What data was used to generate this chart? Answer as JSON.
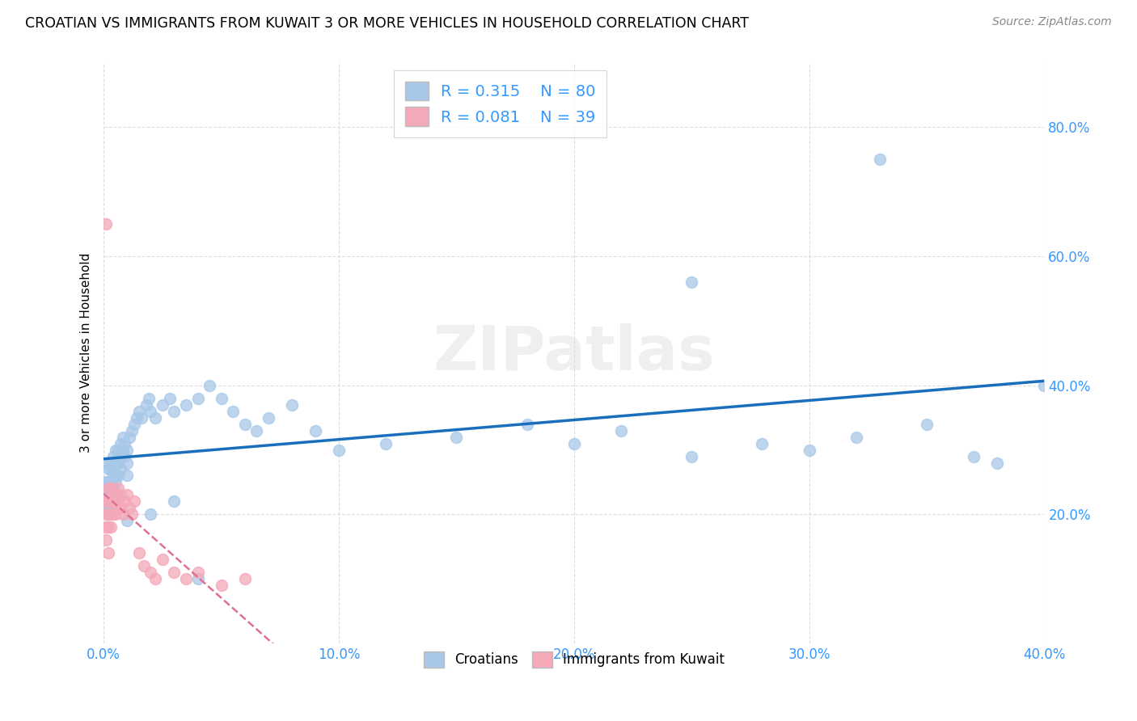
{
  "title": "CROATIAN VS IMMIGRANTS FROM KUWAIT 3 OR MORE VEHICLES IN HOUSEHOLD CORRELATION CHART",
  "source": "Source: ZipAtlas.com",
  "xlabel_range": [
    0.0,
    0.4
  ],
  "ylabel_range": [
    0.0,
    0.9
  ],
  "x_tick_vals": [
    0.0,
    0.1,
    0.2,
    0.3,
    0.4
  ],
  "y_tick_vals": [
    0.2,
    0.4,
    0.6,
    0.8
  ],
  "R_croatian": 0.315,
  "N_croatian": 80,
  "R_kuwait": 0.081,
  "N_kuwait": 39,
  "color_croatian": "#a8c8e8",
  "color_kuwait": "#f4a8b8",
  "trendline_croatian_color": "#1a6fbd",
  "trendline_kuwait_color": "#e07090",
  "watermark": "ZIPatlas",
  "tick_color": "#3399ff",
  "ylabel": "3 or more Vehicles in Household",
  "croatian_x": [
    0.001,
    0.001,
    0.001,
    0.002,
    0.002,
    0.002,
    0.002,
    0.002,
    0.003,
    0.003,
    0.003,
    0.003,
    0.003,
    0.003,
    0.004,
    0.004,
    0.004,
    0.004,
    0.004,
    0.005,
    0.005,
    0.005,
    0.005,
    0.005,
    0.006,
    0.006,
    0.006,
    0.007,
    0.007,
    0.007,
    0.008,
    0.008,
    0.009,
    0.009,
    0.01,
    0.01,
    0.01,
    0.011,
    0.012,
    0.013,
    0.014,
    0.015,
    0.016,
    0.018,
    0.019,
    0.02,
    0.022,
    0.025,
    0.028,
    0.03,
    0.035,
    0.04,
    0.045,
    0.05,
    0.055,
    0.06,
    0.065,
    0.07,
    0.08,
    0.09,
    0.1,
    0.12,
    0.15,
    0.18,
    0.2,
    0.22,
    0.25,
    0.28,
    0.3,
    0.32,
    0.35,
    0.37,
    0.38,
    0.4,
    0.25,
    0.33,
    0.01,
    0.02,
    0.03,
    0.04
  ],
  "croatian_y": [
    0.28,
    0.25,
    0.22,
    0.27,
    0.25,
    0.24,
    0.23,
    0.21,
    0.28,
    0.27,
    0.25,
    0.24,
    0.22,
    0.21,
    0.29,
    0.27,
    0.26,
    0.24,
    0.22,
    0.3,
    0.28,
    0.26,
    0.25,
    0.23,
    0.3,
    0.28,
    0.26,
    0.31,
    0.29,
    0.27,
    0.32,
    0.3,
    0.31,
    0.29,
    0.3,
    0.28,
    0.26,
    0.32,
    0.33,
    0.34,
    0.35,
    0.36,
    0.35,
    0.37,
    0.38,
    0.36,
    0.35,
    0.37,
    0.38,
    0.36,
    0.37,
    0.38,
    0.4,
    0.38,
    0.36,
    0.34,
    0.33,
    0.35,
    0.37,
    0.33,
    0.3,
    0.31,
    0.32,
    0.34,
    0.31,
    0.33,
    0.29,
    0.31,
    0.3,
    0.32,
    0.34,
    0.29,
    0.28,
    0.4,
    0.56,
    0.75,
    0.19,
    0.2,
    0.22,
    0.1
  ],
  "kuwait_x": [
    0.001,
    0.001,
    0.001,
    0.001,
    0.002,
    0.002,
    0.002,
    0.002,
    0.002,
    0.003,
    0.003,
    0.003,
    0.003,
    0.004,
    0.004,
    0.004,
    0.005,
    0.005,
    0.006,
    0.006,
    0.007,
    0.007,
    0.008,
    0.009,
    0.01,
    0.011,
    0.012,
    0.013,
    0.015,
    0.017,
    0.02,
    0.022,
    0.025,
    0.03,
    0.035,
    0.04,
    0.05,
    0.06,
    0.001
  ],
  "kuwait_y": [
    0.22,
    0.2,
    0.18,
    0.16,
    0.24,
    0.22,
    0.2,
    0.18,
    0.14,
    0.24,
    0.22,
    0.2,
    0.18,
    0.23,
    0.22,
    0.2,
    0.22,
    0.2,
    0.24,
    0.22,
    0.23,
    0.21,
    0.2,
    0.22,
    0.23,
    0.21,
    0.2,
    0.22,
    0.14,
    0.12,
    0.11,
    0.1,
    0.13,
    0.11,
    0.1,
    0.11,
    0.09,
    0.1,
    0.65
  ]
}
